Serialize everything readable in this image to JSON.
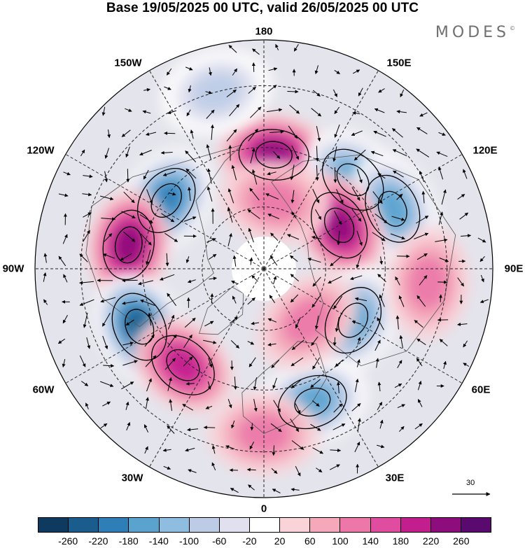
{
  "title": "Base 19/05/2025 00 UTC, valid 26/05/2025 00 UTC",
  "brand": "MODES",
  "brand_mark": "©",
  "longitude_labels": {
    "top": "180",
    "bottom": "0",
    "left": "90W",
    "right": "90E",
    "nw1": "150W",
    "nw2": "120W",
    "ne1": "150E",
    "ne2": "120E",
    "sw1": "60W",
    "sw2": "30W",
    "se1": "60E",
    "se2": "30E"
  },
  "wind_scale_value": "30",
  "colorbar": {
    "colors": [
      "#0d3a5e",
      "#1a5d8c",
      "#2e7fb8",
      "#5aa3cf",
      "#8fbde0",
      "#bccce6",
      "#e0e0ef",
      "#ffffff",
      "#f9d3d8",
      "#f4a8ba",
      "#ec77a8",
      "#e04c9f",
      "#c21e8e",
      "#8e0d7c",
      "#5a0a6e"
    ],
    "ticks": [
      "-260",
      "-220",
      "-180",
      "-140",
      "-100",
      "-60",
      "-20",
      "20",
      "60",
      "100",
      "140",
      "180",
      "220",
      "260"
    ]
  },
  "anomalies": [
    {
      "name": "low-north-america-west",
      "lon": -125,
      "r": 0.52,
      "sign": -1,
      "peak": 180
    },
    {
      "name": "high-canada",
      "lon": -100,
      "r": 0.6,
      "sign": 1,
      "peak": 200
    },
    {
      "name": "low-atlantic-west",
      "lon": -65,
      "r": 0.6,
      "sign": -1,
      "peak": 220
    },
    {
      "name": "high-atlantic",
      "lon": -40,
      "r": 0.55,
      "sign": 1,
      "peak": 140
    },
    {
      "name": "high-bering",
      "lon": 175,
      "r": 0.5,
      "sign": 1,
      "peak": 200
    },
    {
      "name": "low-east-siberia",
      "lon": 135,
      "r": 0.55,
      "sign": -1,
      "peak": 140
    },
    {
      "name": "low-far-east",
      "lon": 115,
      "r": 0.62,
      "sign": -1,
      "peak": 160
    },
    {
      "name": "high-siberia",
      "lon": 120,
      "r": 0.38,
      "sign": 1,
      "peak": 180
    },
    {
      "name": "low-central-asia",
      "lon": 60,
      "r": 0.45,
      "sign": -1,
      "peak": 140
    },
    {
      "name": "high-asia-east",
      "lon": 85,
      "r": 0.72,
      "sign": 1,
      "peak": 80
    },
    {
      "name": "low-europe",
      "lon": 20,
      "r": 0.62,
      "sign": -1,
      "peak": 140
    },
    {
      "name": "high-arctic-atlantic",
      "lon": 40,
      "r": 0.3,
      "sign": 1,
      "peak": 80
    },
    {
      "name": "high-north-africa",
      "lon": 0,
      "r": 0.72,
      "sign": 1,
      "peak": 60
    },
    {
      "name": "low-pacific",
      "lon": -165,
      "r": 0.8,
      "sign": -1,
      "peak": 60
    },
    {
      "name": "high-alaska",
      "lon": 170,
      "r": 0.3,
      "sign": 1,
      "peak": 60
    }
  ]
}
